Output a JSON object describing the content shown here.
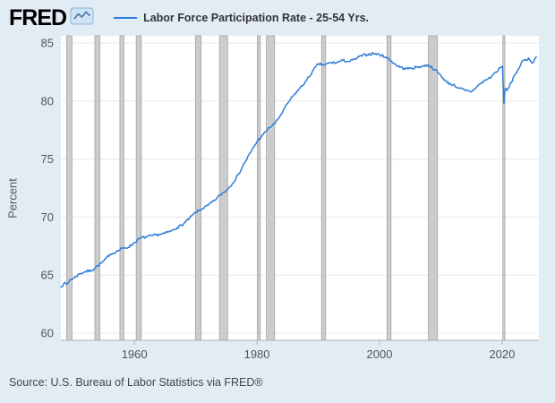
{
  "header": {
    "logo_text": "FRED",
    "legend": {
      "label": "Labor Force Participation Rate - 25-54 Yrs."
    }
  },
  "footer": {
    "source": "Source: U.S. Bureau of Labor Statistics via FRED®"
  },
  "colors": {
    "page_bg": "#e2ecf5",
    "plot_bg": "#ffffff",
    "line": "#2f7ed8",
    "recession": "#cccccc",
    "recession_edge": "#9e9e9e",
    "grid": "#e8e8e8",
    "axis_line": "#b0b0b0",
    "axis_text": "#555555",
    "logo_blue": "#4572a7"
  },
  "chart_data": {
    "type": "line",
    "title": "Labor Force Participation Rate - 25-54 Yrs.",
    "xlabel": "",
    "ylabel": "Percent",
    "xlim": [
      1948,
      2026
    ],
    "ylim": [
      60,
      85
    ],
    "x_ticks": [
      1960,
      1980,
      2000,
      2020
    ],
    "y_ticks": [
      60,
      65,
      70,
      75,
      80,
      85
    ],
    "grid": "horizontal",
    "legend_position": "top",
    "recessions": [
      [
        1948.92,
        1949.83
      ],
      [
        1953.54,
        1954.38
      ],
      [
        1957.63,
        1958.29
      ],
      [
        1960.29,
        1961.13
      ],
      [
        1969.96,
        1970.88
      ],
      [
        1973.88,
        1975.21
      ],
      [
        1980.04,
        1980.54
      ],
      [
        1981.54,
        1982.88
      ],
      [
        1990.54,
        1991.21
      ],
      [
        2001.21,
        2001.88
      ],
      [
        2007.96,
        2009.46
      ],
      [
        2020.12,
        2020.45
      ]
    ],
    "series": [
      {
        "name": "Labor Force Participation Rate - 25-54 Yrs.",
        "color": "#2f7ed8",
        "points": [
          [
            1948,
            64.0
          ],
          [
            1948.5,
            64.3
          ],
          [
            1949,
            64.2
          ],
          [
            1949.5,
            64.6
          ],
          [
            1950,
            64.7
          ],
          [
            1951,
            65.1
          ],
          [
            1952,
            65.3
          ],
          [
            1953,
            65.4
          ],
          [
            1954,
            65.8
          ],
          [
            1955,
            66.2
          ],
          [
            1956,
            66.8
          ],
          [
            1957,
            67.0
          ],
          [
            1958,
            67.3
          ],
          [
            1959,
            67.4
          ],
          [
            1960,
            67.8
          ],
          [
            1961,
            68.2
          ],
          [
            1962,
            68.3
          ],
          [
            1963,
            68.4
          ],
          [
            1964,
            68.5
          ],
          [
            1965,
            68.6
          ],
          [
            1966,
            68.8
          ],
          [
            1967,
            69.1
          ],
          [
            1968,
            69.4
          ],
          [
            1969,
            69.9
          ],
          [
            1970,
            70.4
          ],
          [
            1971,
            70.7
          ],
          [
            1972,
            71.0
          ],
          [
            1973,
            71.4
          ],
          [
            1974,
            71.9
          ],
          [
            1975,
            72.3
          ],
          [
            1976,
            72.9
          ],
          [
            1977,
            73.7
          ],
          [
            1978,
            74.7
          ],
          [
            1979,
            75.6
          ],
          [
            1980,
            76.5
          ],
          [
            1981,
            77.1
          ],
          [
            1982,
            77.7
          ],
          [
            1983,
            78.1
          ],
          [
            1984,
            78.9
          ],
          [
            1985,
            79.8
          ],
          [
            1986,
            80.5
          ],
          [
            1987,
            81.1
          ],
          [
            1988,
            81.7
          ],
          [
            1989,
            82.5
          ],
          [
            1990,
            83.2
          ],
          [
            1991,
            83.1
          ],
          [
            1992,
            83.3
          ],
          [
            1993,
            83.3
          ],
          [
            1994,
            83.5
          ],
          [
            1995,
            83.4
          ],
          [
            1996,
            83.6
          ],
          [
            1997,
            83.9
          ],
          [
            1998,
            84.0
          ],
          [
            1999,
            84.1
          ],
          [
            2000,
            84.0
          ],
          [
            2001,
            83.8
          ],
          [
            2002,
            83.4
          ],
          [
            2003,
            83.0
          ],
          [
            2004,
            82.8
          ],
          [
            2005,
            82.8
          ],
          [
            2006,
            82.9
          ],
          [
            2007,
            83.0
          ],
          [
            2008,
            83.1
          ],
          [
            2009,
            82.7
          ],
          [
            2010,
            82.2
          ],
          [
            2011,
            81.6
          ],
          [
            2012,
            81.4
          ],
          [
            2013,
            81.1
          ],
          [
            2014,
            80.9
          ],
          [
            2015,
            80.8
          ],
          [
            2016,
            81.3
          ],
          [
            2017,
            81.7
          ],
          [
            2018,
            82.0
          ],
          [
            2019,
            82.5
          ],
          [
            2020.05,
            83.0
          ],
          [
            2020.29,
            79.8
          ],
          [
            2020.5,
            81.1
          ],
          [
            2020.8,
            80.9
          ],
          [
            2021,
            81.1
          ],
          [
            2021.5,
            81.6
          ],
          [
            2022,
            82.2
          ],
          [
            2022.5,
            82.6
          ],
          [
            2023,
            83.1
          ],
          [
            2023.5,
            83.5
          ],
          [
            2024,
            83.5
          ],
          [
            2024.3,
            83.7
          ],
          [
            2024.7,
            83.4
          ],
          [
            2025,
            83.3
          ],
          [
            2025.3,
            83.6
          ],
          [
            2025.6,
            83.8
          ]
        ]
      }
    ]
  }
}
